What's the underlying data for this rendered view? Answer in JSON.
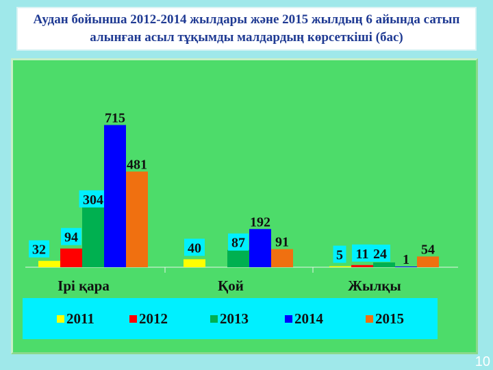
{
  "title": {
    "line1": "Аудан бойынша 2012-2014 жылдары және 2015 жылдың 6 айында сатып",
    "line2": "алынған асыл тұқымды малдардың көрсеткіші (бас)"
  },
  "page_number": "10",
  "colors": {
    "background": "#9fe8ea",
    "plot": "#4ddc6a",
    "legend_bg": "#00f0ff",
    "label_bg": "#00f0ff"
  },
  "chart_data": {
    "type": "bar",
    "categories": [
      "Ірі қара",
      "Қой",
      "Жылқы"
    ],
    "series": [
      {
        "name": "2011",
        "color": "#ffff00",
        "values": [
          32,
          40,
          5
        ]
      },
      {
        "name": "2012",
        "color": "#ff0000",
        "values": [
          94,
          null,
          11
        ]
      },
      {
        "name": "2013",
        "color": "#00b050",
        "values": [
          304,
          87,
          24
        ]
      },
      {
        "name": "2014",
        "color": "#0000ff",
        "values": [
          715,
          192,
          1
        ]
      },
      {
        "name": "2015",
        "color": "#f07010",
        "values": [
          481,
          91,
          54
        ]
      }
    ],
    "ylim": [
      0,
      800
    ],
    "grid": false,
    "legend": "bottom",
    "data_labels": true
  }
}
